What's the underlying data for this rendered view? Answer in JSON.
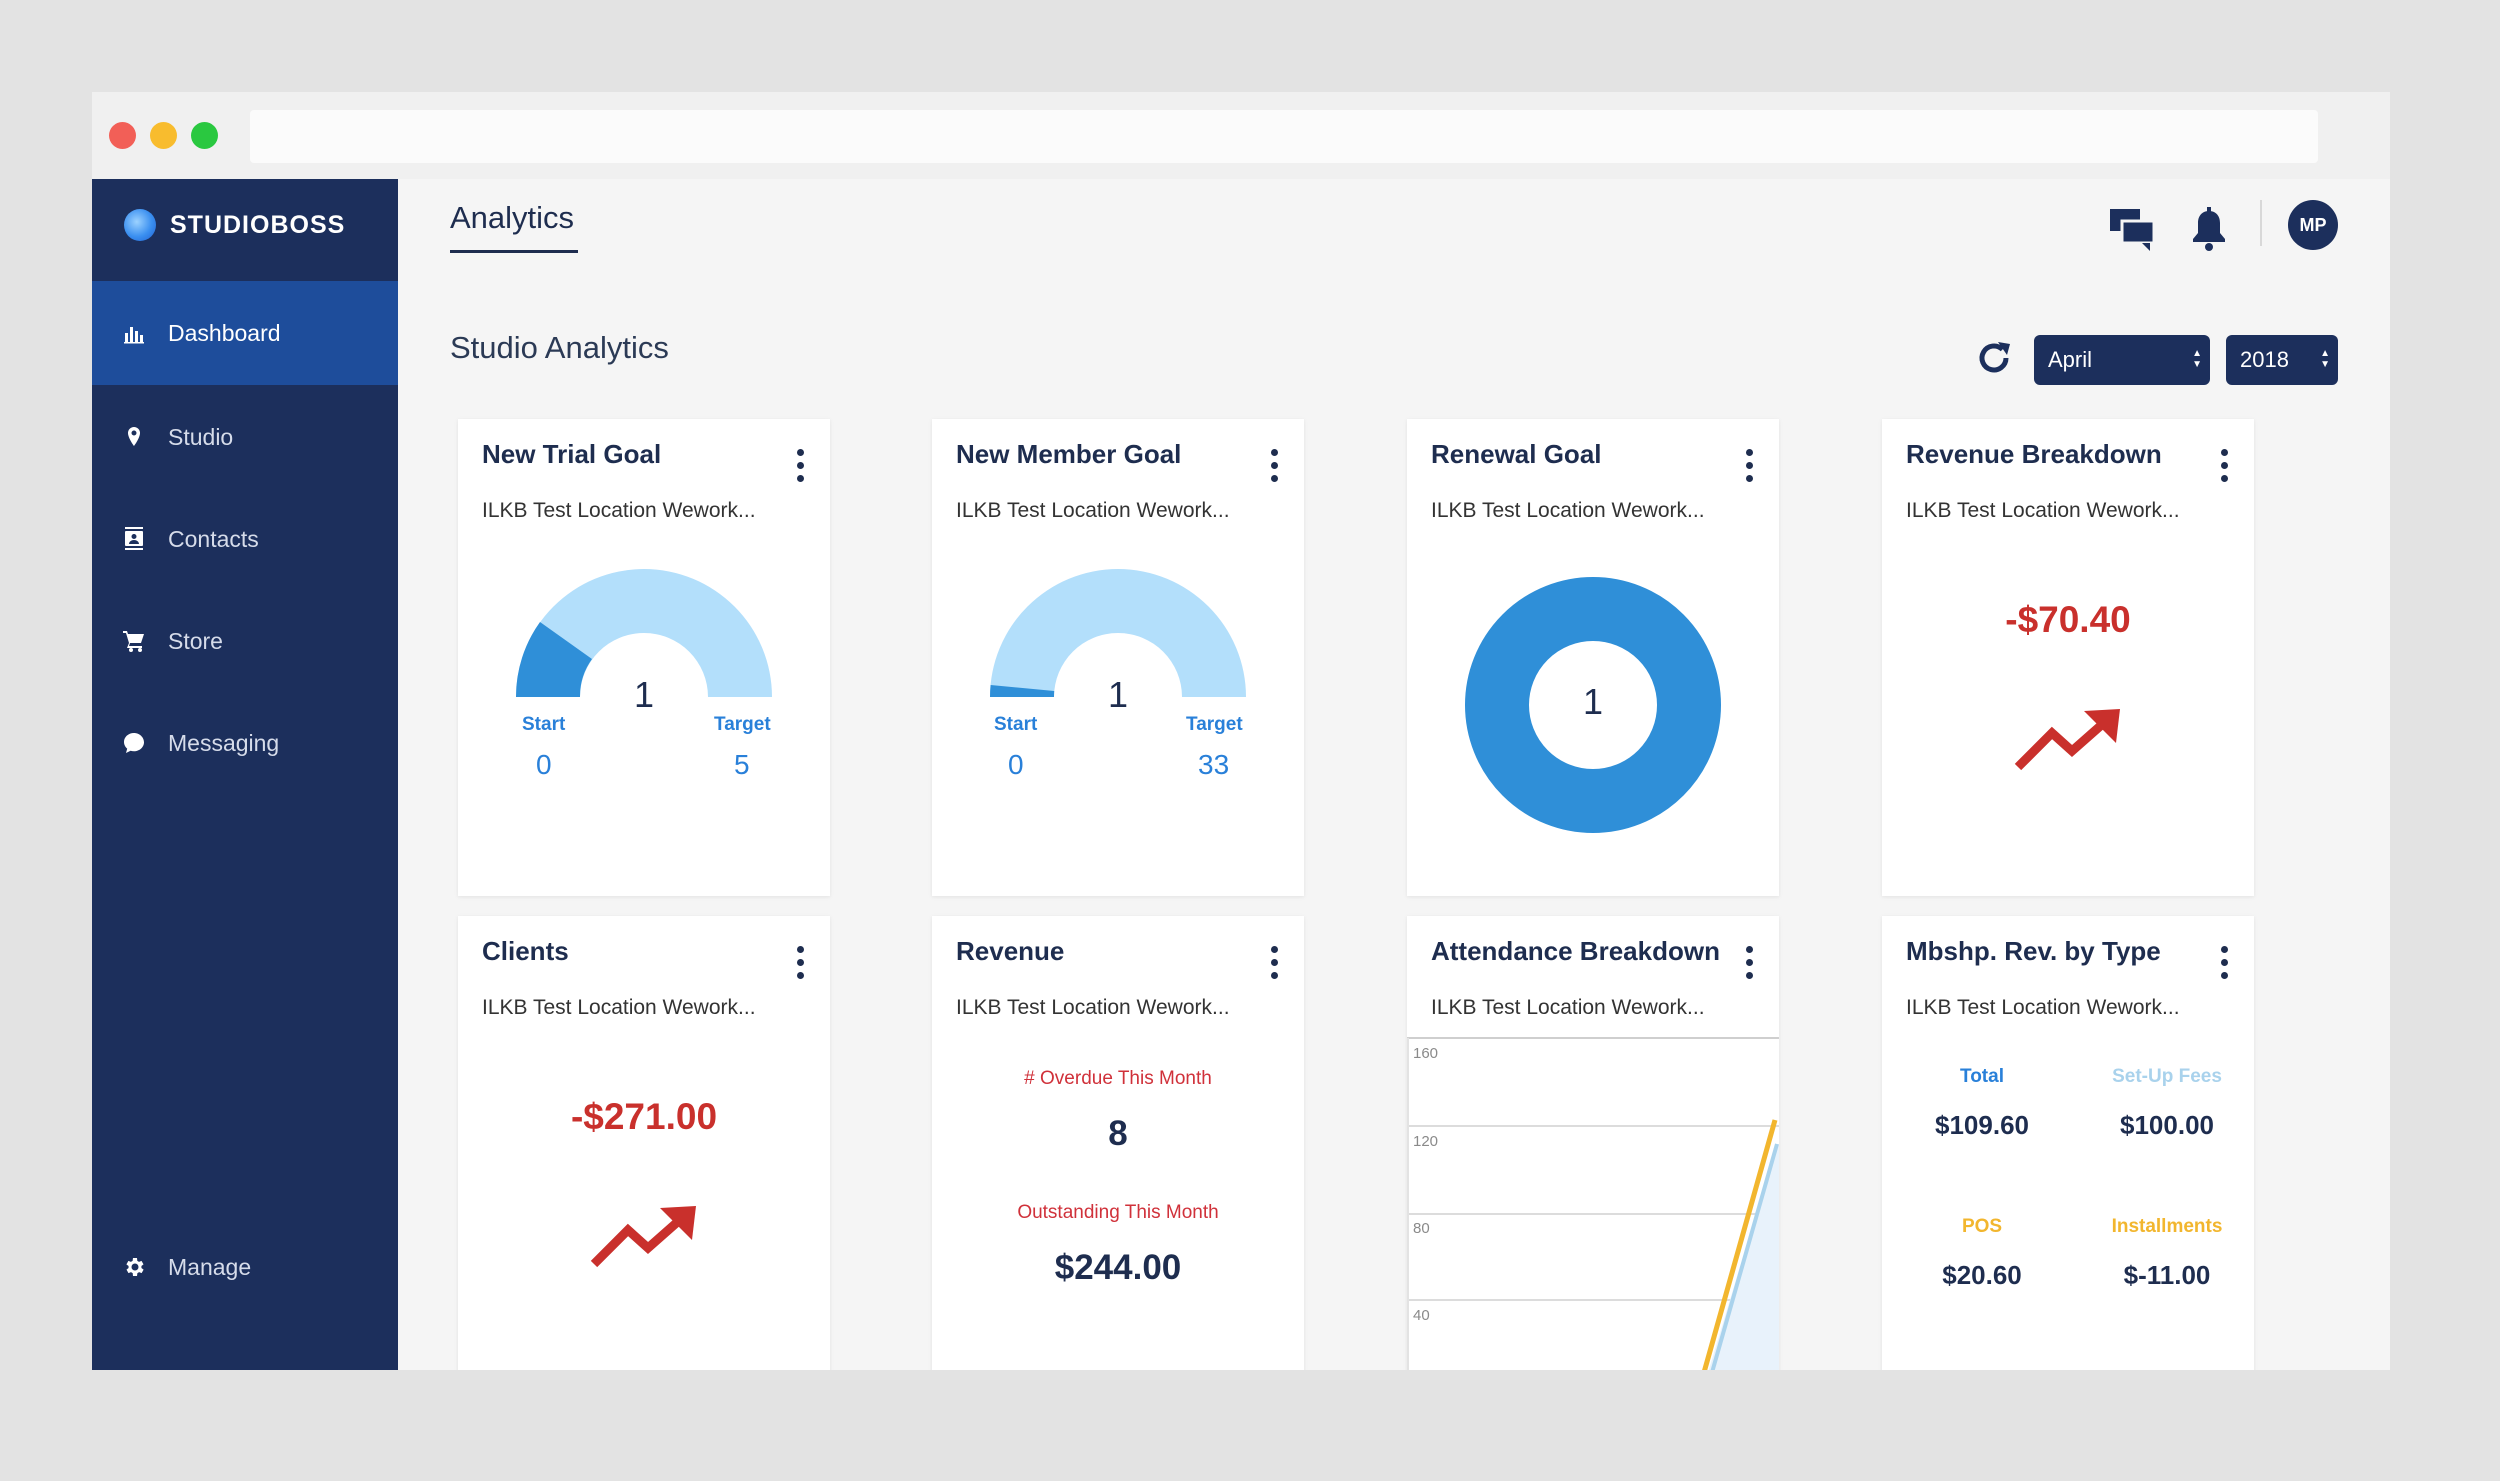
{
  "brand": {
    "name": "STUDIOBOSS"
  },
  "sidebar": {
    "items": [
      {
        "label": "Dashboard",
        "icon": "bar-chart-icon"
      },
      {
        "label": "Studio",
        "icon": "map-pin-icon"
      },
      {
        "label": "Contacts",
        "icon": "contacts-icon"
      },
      {
        "label": "Store",
        "icon": "cart-icon"
      },
      {
        "label": "Messaging",
        "icon": "chat-bubble-icon"
      }
    ],
    "manage": {
      "label": "Manage",
      "icon": "gear-icon"
    }
  },
  "header": {
    "title": "Analytics",
    "avatar_initials": "MP"
  },
  "section": {
    "title": "Studio Analytics"
  },
  "filters": {
    "month": "April",
    "year": "2018"
  },
  "cards": {
    "new_trial": {
      "title": "New Trial Goal",
      "subtitle": "ILKB Test Location Wework...",
      "value": "1",
      "start_label": "Start",
      "start_value": "0",
      "target_label": "Target",
      "target_value": "5"
    },
    "new_member": {
      "title": "New Member Goal",
      "subtitle": "ILKB Test Location Wework...",
      "value": "1",
      "start_label": "Start",
      "start_value": "0",
      "target_label": "Target",
      "target_value": "33"
    },
    "renewal": {
      "title": "Renewal Goal",
      "subtitle": "ILKB Test Location Wework...",
      "value": "1"
    },
    "revenue_breakdown": {
      "title": "Revenue Breakdown",
      "subtitle": "ILKB Test Location Wework...",
      "amount": "-$70.40"
    },
    "clients": {
      "title": "Clients",
      "subtitle": "ILKB Test Location Wework...",
      "amount": "-$271.00"
    },
    "revenue": {
      "title": "Revenue",
      "subtitle": "ILKB Test Location Wework...",
      "overdue_label": "# Overdue This Month",
      "overdue_value": "8",
      "outstanding_label": "Outstanding This Month",
      "outstanding_value": "$244.00"
    },
    "attendance": {
      "title": "Attendance Breakdown",
      "subtitle": "ILKB Test Location Wework...",
      "y_ticks": [
        "160",
        "120",
        "80",
        "40"
      ]
    },
    "mbshp": {
      "title": "Mbshp. Rev. by Type",
      "subtitle": "ILKB Test Location Wework...",
      "total_label": "Total",
      "total_value": "$109.60",
      "setup_label": "Set-Up Fees",
      "setup_value": "$100.00",
      "pos_label": "POS",
      "pos_value": "$20.60",
      "inst_label": "Installments",
      "inst_value": "$-11.00"
    }
  },
  "colors": {
    "sidebar": "#1c2f5c",
    "active": "#1e4d9b",
    "accent": "#2980d9",
    "negative": "#c9302c",
    "gauge_light": "#b3dffb",
    "gauge_dark": "#2f8fd8",
    "pos": "#f2b62e",
    "setup": "#a9d2ec"
  }
}
